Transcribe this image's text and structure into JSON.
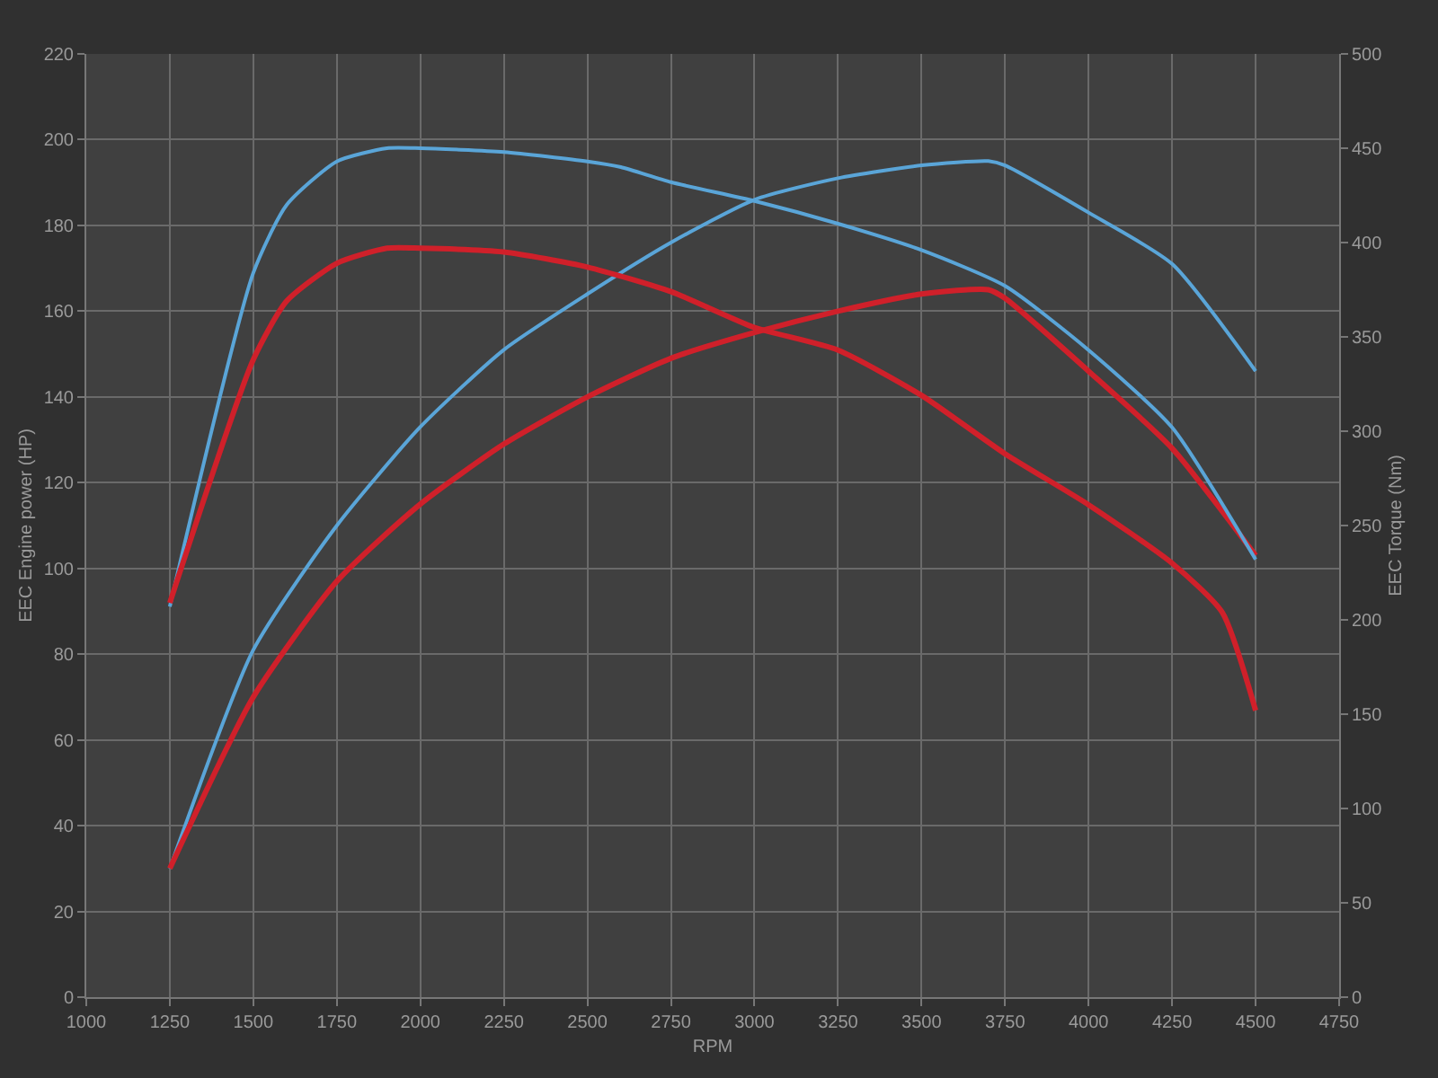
{
  "chart_data": {
    "type": "line",
    "xlabel": "RPM",
    "ylabel": "EEC Engine power (HP)",
    "y2label": "EEC Torque (Nm)",
    "xlim": [
      1000,
      4750
    ],
    "xticks": [
      1000,
      1250,
      1500,
      1750,
      2000,
      2250,
      2500,
      2750,
      3000,
      3250,
      3500,
      3750,
      4000,
      4250,
      4500,
      4750
    ],
    "ylim": [
      0,
      220
    ],
    "yticks": [
      0,
      20,
      40,
      60,
      80,
      100,
      120,
      140,
      160,
      180,
      200,
      220
    ],
    "y2lim": [
      0,
      500
    ],
    "y2ticks": [
      0,
      50,
      100,
      150,
      200,
      250,
      300,
      350,
      400,
      450,
      500
    ],
    "grid": true,
    "marker": "none",
    "line_style": "solid",
    "series": [
      {
        "color": "#5aa5d8",
        "x": [
          1250,
          1500,
          1750,
          2000,
          2250,
          2500,
          2750,
          3000,
          3250,
          3500,
          3700,
          3750,
          4000,
          4250,
          4500
        ],
        "values": [
          30,
          81,
          110,
          133,
          151,
          164,
          176,
          186,
          191,
          194,
          195,
          194,
          183,
          171,
          146
        ]
      },
      {
        "color": "#d0202a",
        "x": [
          1250,
          1500,
          1750,
          2000,
          2250,
          2500,
          2750,
          3000,
          3250,
          3500,
          3700,
          3750,
          4000,
          4250,
          4500
        ],
        "values": [
          30,
          70,
          97,
          115,
          129,
          140,
          149,
          155,
          160,
          164,
          165,
          163,
          146,
          128,
          103
        ]
      },
      {
        "color": "#5aa5d8",
        "axis": "y2",
        "x": [
          1250,
          1500,
          1600,
          1750,
          1900,
          2000,
          2250,
          2500,
          2600,
          2750,
          3000,
          3250,
          3500,
          3750,
          4000,
          4250,
          4500
        ],
        "values": [
          207,
          384,
          420,
          443,
          450,
          450,
          448,
          443,
          440,
          432,
          422,
          410,
          396,
          377,
          343,
          302,
          232
        ]
      },
      {
        "color": "#d0202a",
        "axis": "y2",
        "x": [
          1250,
          1500,
          1600,
          1750,
          1900,
          2000,
          2250,
          2500,
          2750,
          3000,
          3250,
          3500,
          3750,
          4000,
          4250,
          4400,
          4500
        ],
        "values": [
          209,
          338,
          369,
          389,
          397,
          397,
          395,
          387,
          374,
          355,
          343,
          319,
          288,
          261,
          230,
          204,
          152
        ]
      }
    ]
  }
}
